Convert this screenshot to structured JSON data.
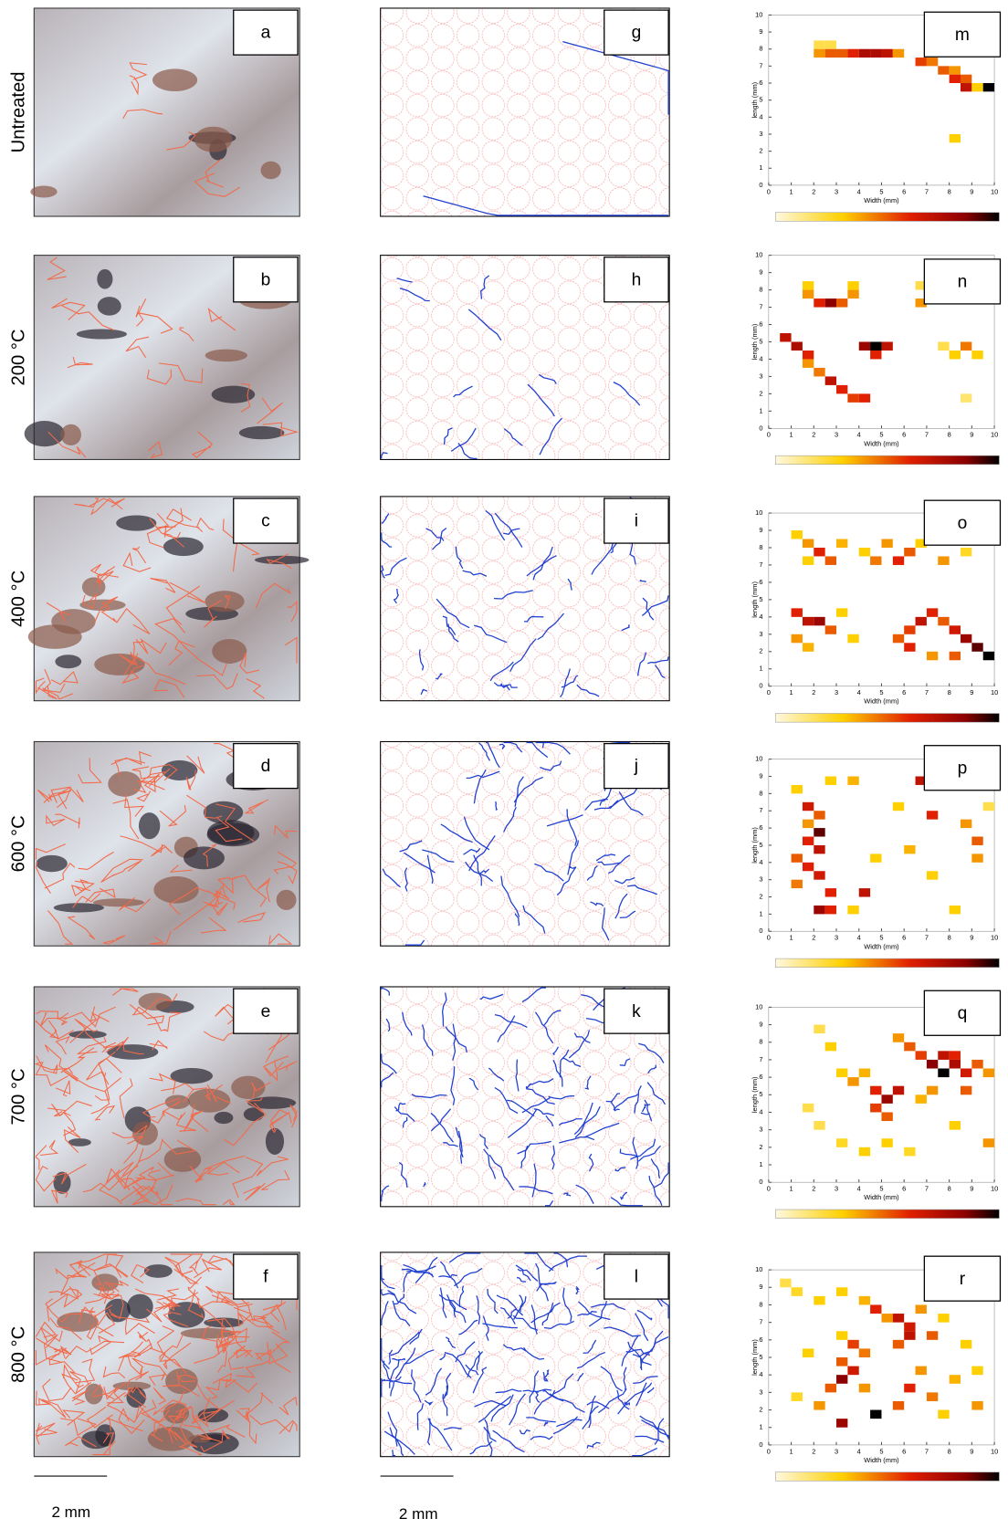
{
  "rows": [
    {
      "label": "Untreated",
      "photo_letter": "a",
      "map_letter": "g",
      "heatmap": {
        "letter": "m",
        "cells": [
          [
            2,
            8,
            0.2
          ],
          [
            2.5,
            8,
            0.2
          ],
          [
            2,
            7.5,
            0.4
          ],
          [
            2.5,
            7.5,
            0.5
          ],
          [
            3,
            7.5,
            0.5
          ],
          [
            3.5,
            7.5,
            0.6
          ],
          [
            4,
            7.5,
            0.75
          ],
          [
            4.5,
            7.5,
            0.75
          ],
          [
            5,
            7.5,
            0.7
          ],
          [
            5.5,
            7.5,
            0.4
          ],
          [
            6.5,
            7,
            0.55
          ],
          [
            7,
            7,
            0.45
          ],
          [
            7.5,
            6.5,
            0.5
          ],
          [
            8,
            6.5,
            0.4
          ],
          [
            8,
            6,
            0.6
          ],
          [
            8.5,
            6,
            0.5
          ],
          [
            8.5,
            5.5,
            0.7
          ],
          [
            9,
            5.5,
            0.3
          ],
          [
            9.5,
            5.5,
            1
          ],
          [
            8,
            2.5,
            0.3
          ]
        ]
      }
    },
    {
      "label": "200 °C",
      "photo_letter": "b",
      "map_letter": "h",
      "heatmap": {
        "letter": "n",
        "cells": [
          [
            1.5,
            8,
            0.3
          ],
          [
            3.5,
            8,
            0.3
          ],
          [
            6.5,
            8,
            0.2
          ],
          [
            1.5,
            7.5,
            0.4
          ],
          [
            2,
            7,
            0.6
          ],
          [
            2.5,
            7,
            0.85
          ],
          [
            3,
            7,
            0.5
          ],
          [
            3.5,
            7.5,
            0.4
          ],
          [
            6.5,
            7,
            0.4
          ],
          [
            0.5,
            5,
            0.7
          ],
          [
            1,
            4.5,
            0.75
          ],
          [
            1.5,
            4,
            0.6
          ],
          [
            1.5,
            3.5,
            0.4
          ],
          [
            2,
            3,
            0.45
          ],
          [
            2.5,
            2.5,
            0.7
          ],
          [
            3,
            2,
            0.6
          ],
          [
            3.5,
            1.5,
            0.55
          ],
          [
            4,
            1.5,
            0.6
          ],
          [
            4,
            4.5,
            0.8
          ],
          [
            4.5,
            4.5,
            1
          ],
          [
            5,
            4.5,
            0.7
          ],
          [
            4.5,
            4,
            0.6
          ],
          [
            7.5,
            4.5,
            0.2
          ],
          [
            8,
            4,
            0.3
          ],
          [
            8.5,
            4.5,
            0.45
          ],
          [
            9,
            4,
            0.3
          ],
          [
            8.5,
            1.5,
            0.15
          ]
        ]
      }
    },
    {
      "label": "400 °C",
      "photo_letter": "c",
      "map_letter": "i",
      "heatmap": {
        "letter": "o",
        "cells": [
          [
            1,
            8.5,
            0.3
          ],
          [
            1.5,
            8,
            0.4
          ],
          [
            2,
            7.5,
            0.6
          ],
          [
            2.5,
            7,
            0.5
          ],
          [
            1.5,
            7,
            0.3
          ],
          [
            3,
            8,
            0.35
          ],
          [
            4,
            7.5,
            0.3
          ],
          [
            4.5,
            7,
            0.45
          ],
          [
            5,
            8,
            0.4
          ],
          [
            5.5,
            7,
            0.6
          ],
          [
            6,
            7.5,
            0.5
          ],
          [
            6.5,
            8,
            0.3
          ],
          [
            7.5,
            7,
            0.4
          ],
          [
            8.5,
            7.5,
            0.25
          ],
          [
            1,
            4,
            0.6
          ],
          [
            1.5,
            3.5,
            0.7
          ],
          [
            2,
            3.5,
            0.8
          ],
          [
            2.5,
            3,
            0.5
          ],
          [
            1,
            2.5,
            0.4
          ],
          [
            1.5,
            2,
            0.35
          ],
          [
            3,
            4,
            0.3
          ],
          [
            3.5,
            2.5,
            0.3
          ],
          [
            5.5,
            2.5,
            0.5
          ],
          [
            6,
            3,
            0.55
          ],
          [
            6.5,
            3.5,
            0.7
          ],
          [
            7,
            4,
            0.6
          ],
          [
            7.5,
            3.5,
            0.5
          ],
          [
            8,
            3,
            0.65
          ],
          [
            8.5,
            2.5,
            0.8
          ],
          [
            9,
            2,
            0.9
          ],
          [
            9.5,
            1.5,
            1
          ],
          [
            8,
            1.5,
            0.5
          ],
          [
            7,
            1.5,
            0.4
          ],
          [
            6,
            2,
            0.6
          ]
        ]
      }
    },
    {
      "label": "600 °C",
      "photo_letter": "d",
      "map_letter": "j",
      "heatmap": {
        "letter": "p",
        "cells": [
          [
            1,
            8,
            0.3
          ],
          [
            2.5,
            8.5,
            0.3
          ],
          [
            3.5,
            8.5,
            0.35
          ],
          [
            1.5,
            7,
            0.65
          ],
          [
            2,
            6.5,
            0.5
          ],
          [
            1.5,
            6,
            0.4
          ],
          [
            2,
            5.5,
            0.9
          ],
          [
            1.5,
            5,
            0.6
          ],
          [
            2,
            4.5,
            0.7
          ],
          [
            1,
            4,
            0.5
          ],
          [
            1.5,
            3.5,
            0.6
          ],
          [
            2,
            3,
            0.65
          ],
          [
            1,
            2.5,
            0.45
          ],
          [
            2.5,
            2,
            0.6
          ],
          [
            2,
            1,
            0.8
          ],
          [
            2.5,
            1,
            0.6
          ],
          [
            4,
            2,
            0.7
          ],
          [
            3.5,
            1,
            0.3
          ],
          [
            4.5,
            4,
            0.3
          ],
          [
            6.5,
            8.5,
            0.7
          ],
          [
            7,
            6.5,
            0.6
          ],
          [
            5.5,
            7,
            0.3
          ],
          [
            6,
            4.5,
            0.35
          ],
          [
            7,
            3,
            0.3
          ],
          [
            8.5,
            6,
            0.4
          ],
          [
            9,
            5,
            0.5
          ],
          [
            9,
            4,
            0.4
          ],
          [
            8,
            1,
            0.3
          ],
          [
            9.5,
            7,
            0.2
          ]
        ]
      }
    },
    {
      "label": "700 °C",
      "photo_letter": "e",
      "map_letter": "k",
      "heatmap": {
        "letter": "q",
        "cells": [
          [
            2,
            8.5,
            0.2
          ],
          [
            2.5,
            7.5,
            0.3
          ],
          [
            3,
            6,
            0.3
          ],
          [
            3.5,
            5.5,
            0.4
          ],
          [
            4,
            6,
            0.35
          ],
          [
            4.5,
            5,
            0.6
          ],
          [
            5,
            4.5,
            0.8
          ],
          [
            5.5,
            5,
            0.7
          ],
          [
            4.5,
            4,
            0.55
          ],
          [
            5,
            3.5,
            0.5
          ],
          [
            5.5,
            8,
            0.4
          ],
          [
            6,
            7.5,
            0.5
          ],
          [
            6.5,
            7,
            0.55
          ],
          [
            7,
            6.5,
            0.85
          ],
          [
            7.5,
            6,
            1
          ],
          [
            7.5,
            7,
            0.7
          ],
          [
            8,
            6.5,
            0.75
          ],
          [
            8.5,
            6,
            0.65
          ],
          [
            8,
            7,
            0.6
          ],
          [
            9,
            6.5,
            0.5
          ],
          [
            9.5,
            6,
            0.4
          ],
          [
            8.5,
            5,
            0.5
          ],
          [
            7,
            5,
            0.4
          ],
          [
            6.5,
            4.5,
            0.35
          ],
          [
            2,
            3,
            0.2
          ],
          [
            3,
            2,
            0.25
          ],
          [
            4,
            1.5,
            0.3
          ],
          [
            5,
            2,
            0.3
          ],
          [
            6,
            1.5,
            0.25
          ],
          [
            9.5,
            2,
            0.4
          ],
          [
            8,
            3,
            0.3
          ],
          [
            1.5,
            4,
            0.2
          ]
        ]
      }
    },
    {
      "label": "800 °C",
      "photo_letter": "f",
      "map_letter": "l",
      "heatmap": {
        "letter": "r",
        "cells": [
          [
            0.5,
            9,
            0.2
          ],
          [
            1,
            8.5,
            0.25
          ],
          [
            2,
            8,
            0.3
          ],
          [
            3,
            8.5,
            0.3
          ],
          [
            4,
            8,
            0.35
          ],
          [
            4.5,
            7.5,
            0.6
          ],
          [
            5,
            7,
            0.4
          ],
          [
            5.5,
            7,
            0.7
          ],
          [
            6,
            6.5,
            0.65
          ],
          [
            6,
            6,
            0.7
          ],
          [
            5.5,
            5.5,
            0.5
          ],
          [
            6.5,
            7.5,
            0.4
          ],
          [
            7,
            6,
            0.5
          ],
          [
            7.5,
            7,
            0.3
          ],
          [
            3,
            6,
            0.3
          ],
          [
            3.5,
            5.5,
            0.55
          ],
          [
            4,
            5,
            0.45
          ],
          [
            3,
            4.5,
            0.5
          ],
          [
            3.5,
            4,
            0.65
          ],
          [
            3,
            3.5,
            0.85
          ],
          [
            2.5,
            3,
            0.5
          ],
          [
            4,
            3,
            0.4
          ],
          [
            4.5,
            1.5,
            1
          ],
          [
            3,
            1,
            0.8
          ],
          [
            2,
            2,
            0.4
          ],
          [
            5.5,
            2,
            0.5
          ],
          [
            6,
            3,
            0.6
          ],
          [
            7,
            2.5,
            0.45
          ],
          [
            8,
            3.5,
            0.35
          ],
          [
            9,
            4,
            0.3
          ],
          [
            9,
            2,
            0.4
          ],
          [
            8.5,
            5.5,
            0.3
          ],
          [
            1.5,
            5,
            0.3
          ],
          [
            1,
            2.5,
            0.25
          ],
          [
            6.5,
            4,
            0.4
          ],
          [
            7.5,
            1.5,
            0.3
          ]
        ]
      }
    }
  ],
  "heatmap_axes": {
    "xlabel": "Width (mm)",
    "ylabel": "length (mm)",
    "ticks": [
      0,
      1,
      2,
      3,
      4,
      5,
      6,
      7,
      8,
      9,
      10
    ]
  },
  "scale_bars": [
    "2 mm",
    "2 mm"
  ]
}
